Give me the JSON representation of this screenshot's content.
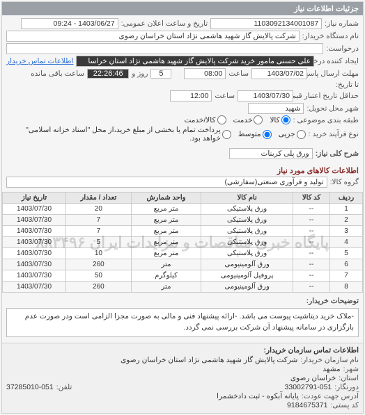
{
  "panel": {
    "title": "جزئیات اطلاعات نیاز"
  },
  "header": {
    "number_label": "شماره نیاز:",
    "number": "1103092134001087",
    "datetime_label": "تاریخ و ساعت اعلان عمومی:",
    "datetime": "1403/06/27 - 09:24",
    "org_label": "نام دستگاه خریدار:",
    "org": "شرکت پالایش گاز شهید هاشمی نژاد   استان خراسان رضوی",
    "subject_label": "درخواست:",
    "creator_label": "ایجاد کننده درخواست:",
    "creator": "علی حسنی مامور خرید شرکت پالایش گاز شهید هاشمی نژاد   استان خراسا",
    "contact_link": "اطلاعات تماس خریدار",
    "send_deadline_label": "مهلت ارسال پاسخ:",
    "send_deadline_date": "1403/07/02",
    "time_label": "ساعت",
    "send_deadline_time": "08:00",
    "days_left": "5",
    "days_left_label": "روز و",
    "time_left": "22:26:46",
    "time_left_label": "ساعت باقی مانده",
    "to_date_label": "تا تاریخ:",
    "price_valid_label": "حداقل تاریخ اعتبار قیمت: تا تاریخ:",
    "price_valid_date": "1403/07/30",
    "price_valid_time": "12:00",
    "city_label": "شهر محل تحویل:",
    "city": "شهید",
    "category_label": "طبقه بندی موضوعی :",
    "cat_goods": "کالا",
    "cat_service": "خدمت",
    "cat_both": "کالا/خدمت",
    "process_label": "نوع فرآیند خرید :",
    "proc_small": "جزیی",
    "proc_mid": "متوسط",
    "proc_large": "پرداخت تمام یا بخشی از مبلغ خرید،از محل \"اسناد خزانه اسلامی\" خواهد بود."
  },
  "need_key": {
    "label": "شرح کلی نیاز:",
    "value": "ورق پلی کربنات"
  },
  "goods_header": "اطلاعات کالاهای مورد نیاز",
  "group_label": "گروه کالا:",
  "group_value": "تولید و فرآوری صنعتی(سفارشی)",
  "table": {
    "cols": [
      "ردیف",
      "کد کالا",
      "نام کالا",
      "واحد شمارش",
      "تعداد / مقدار",
      "تاریخ نیاز"
    ],
    "rows": [
      [
        "1",
        "--",
        "ورق پلاستیکی",
        "متر مربع",
        "20",
        "1403/07/30"
      ],
      [
        "2",
        "--",
        "ورق پلاستیکی",
        "متر مربع",
        "7",
        "1403/07/30"
      ],
      [
        "3",
        "--",
        "ورق پلاستیکی",
        "متر مربع",
        "7",
        "1403/07/30"
      ],
      [
        "4",
        "--",
        "ورق پلاستیکی",
        "متر مربع",
        "5",
        "1403/07/30"
      ],
      [
        "5",
        "--",
        "ورق پلاستیکی",
        "متر مربع",
        "10",
        "1403/07/30"
      ],
      [
        "6",
        "--",
        "ورق آلومینیومی",
        "متر",
        "260",
        "1403/07/30"
      ],
      [
        "7",
        "--",
        "پروفیل آلومینیومی",
        "کیلوگرم",
        "50",
        "1403/07/30"
      ],
      [
        "8",
        "--",
        "ورق آلومینیومی",
        "متر",
        "260",
        "1403/07/30"
      ]
    ]
  },
  "watermark": "پایگاه خبری مناقصات و مزایدات ایران  ۸۸۳۴۹۶",
  "buyer_desc_label": "توضیحات خریدار:",
  "buyer_desc": "-ملاک خرید دیتاشیت پیوست می باشد. -ارائه پیشنهاد فنی و مالی به صورت مجزا الزامی است ودر صورت عدم بارگزاری در سامانه پیشنهاد آن شرکت بررسی نمی گردد.",
  "footer": {
    "header": "اطلاعات تماس سازمان خریدار:",
    "org_label": "نام سازمان خریدار:",
    "org": "شرکت پالایش گاز شهید هاشمی نژاد استان خراسان رضوی",
    "city_label": "شهر:",
    "city": "مشهد",
    "province_label": "استان:",
    "province": "خراسان رضوی",
    "fax_label": "دورنگار:",
    "fax": "33002791-051",
    "phone_label": "تلفن:",
    "phone": "37285010-051",
    "address_label": "آدرس جهت عودت:",
    "postal_label": "کد پستی:",
    "postal": "9184675371",
    "pobox_label": "پایانه آبکوه - ثبت دادخشمرا"
  }
}
